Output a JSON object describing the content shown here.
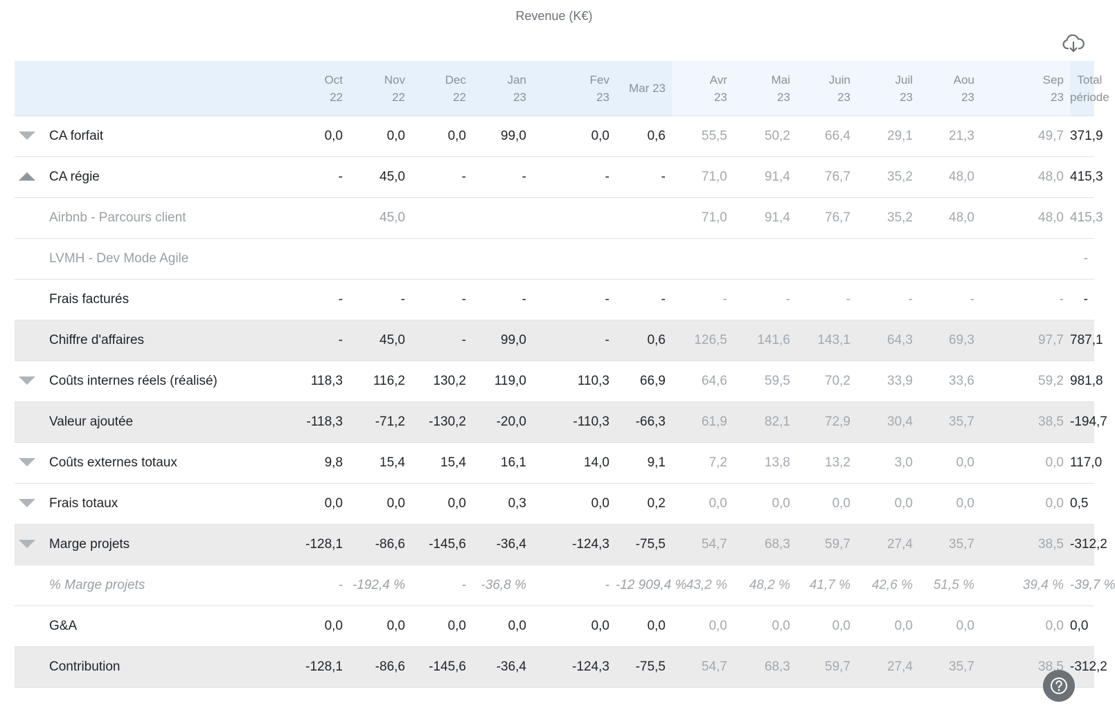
{
  "title": "Revenue (K€)",
  "columns": [
    {
      "line1": "Oct",
      "line2": "22",
      "kind": "hist"
    },
    {
      "line1": "Nov",
      "line2": "22",
      "kind": "hist"
    },
    {
      "line1": "Dec",
      "line2": "22",
      "kind": "hist"
    },
    {
      "line1": "Jan",
      "line2": "23",
      "kind": "hist"
    },
    {
      "line1": "Fev",
      "line2": "23",
      "kind": "hist"
    },
    {
      "line1": "Mar 23",
      "line2": "",
      "kind": "hist"
    },
    {
      "line1": "Avr",
      "line2": "23",
      "kind": "fcst"
    },
    {
      "line1": "Mai",
      "line2": "23",
      "kind": "fcst"
    },
    {
      "line1": "Juin",
      "line2": "23",
      "kind": "fcst"
    },
    {
      "line1": "Juil",
      "line2": "23",
      "kind": "fcst"
    },
    {
      "line1": "Aou",
      "line2": "23",
      "kind": "fcst"
    },
    {
      "line1": "Sep",
      "line2": "23",
      "kind": "fcst"
    },
    {
      "line1": "Total",
      "line2": "période",
      "kind": "tot"
    }
  ],
  "rows": [
    {
      "label": "CA forfait",
      "toggle": "down",
      "style": "normal",
      "values": [
        "0,0",
        "0,0",
        "0,0",
        "99,0",
        "0,0",
        "0,6",
        "55,5",
        "50,2",
        "66,4",
        "29,1",
        "21,3",
        "49,7",
        "371,9"
      ]
    },
    {
      "label": "CA régie",
      "toggle": "up",
      "style": "normal",
      "values": [
        "-",
        "45,0",
        "-",
        "-",
        "-",
        "-",
        "71,0",
        "91,4",
        "76,7",
        "35,2",
        "48,0",
        "48,0",
        "415,3"
      ]
    },
    {
      "label": "Airbnb - Parcours client",
      "toggle": "",
      "style": "sub",
      "values": [
        "",
        "45,0",
        "",
        "",
        "",
        "",
        "71,0",
        "91,4",
        "76,7",
        "35,2",
        "48,0",
        "48,0",
        "415,3"
      ]
    },
    {
      "label": "LVMH - Dev Mode Agile",
      "toggle": "",
      "style": "sub",
      "values": [
        "",
        "",
        "",
        "",
        "",
        "",
        "",
        "",
        "",
        "",
        "",
        "",
        "-"
      ]
    },
    {
      "label": "Frais facturés",
      "toggle": "",
      "style": "normal",
      "values": [
        "-",
        "-",
        "-",
        "-",
        "-",
        "-",
        "-",
        "-",
        "-",
        "-",
        "-",
        "-",
        "-"
      ]
    },
    {
      "label": "Chiffre d'affaires",
      "toggle": "",
      "style": "subtotal",
      "values": [
        "-",
        "45,0",
        "-",
        "99,0",
        "-",
        "0,6",
        "126,5",
        "141,6",
        "143,1",
        "64,3",
        "69,3",
        "97,7",
        "787,1"
      ]
    },
    {
      "label": "Coûts internes réels (réalisé)",
      "toggle": "down",
      "style": "normal",
      "values": [
        "118,3",
        "116,2",
        "130,2",
        "119,0",
        "110,3",
        "66,9",
        "64,6",
        "59,5",
        "70,2",
        "33,9",
        "33,6",
        "59,2",
        "981,8"
      ]
    },
    {
      "label": "Valeur ajoutée",
      "toggle": "",
      "style": "subtotal",
      "values": [
        "-118,3",
        "-71,2",
        "-130,2",
        "-20,0",
        "-110,3",
        "-66,3",
        "61,9",
        "82,1",
        "72,9",
        "30,4",
        "35,7",
        "38,5",
        "-194,7"
      ]
    },
    {
      "label": "Coûts externes totaux",
      "toggle": "down",
      "style": "normal",
      "values": [
        "9,8",
        "15,4",
        "15,4",
        "16,1",
        "14,0",
        "9,1",
        "7,2",
        "13,8",
        "13,2",
        "3,0",
        "0,0",
        "0,0",
        "117,0"
      ]
    },
    {
      "label": "Frais totaux",
      "toggle": "down",
      "style": "normal",
      "values": [
        "0,0",
        "0,0",
        "0,0",
        "0,3",
        "0,0",
        "0,2",
        "0,0",
        "0,0",
        "0,0",
        "0,0",
        "0,0",
        "0,0",
        "0,5"
      ]
    },
    {
      "label": "Marge projets",
      "toggle": "down",
      "style": "subtotal",
      "values": [
        "-128,1",
        "-86,6",
        "-145,6",
        "-36,4",
        "-124,3",
        "-75,5",
        "54,7",
        "68,3",
        "59,7",
        "27,4",
        "35,7",
        "38,5",
        "-312,2"
      ]
    },
    {
      "label": "% Marge projets",
      "toggle": "",
      "style": "pct",
      "values": [
        "-",
        "-192,4 %",
        "-",
        "-36,8 %",
        "-",
        "-12 909,4 %",
        "43,2 %",
        "48,2 %",
        "41,7 %",
        "42,6 %",
        "51,5 %",
        "39,4 %",
        "-39,7 %"
      ]
    },
    {
      "label": "G&A",
      "toggle": "",
      "style": "normal",
      "values": [
        "0,0",
        "0,0",
        "0,0",
        "0,0",
        "0,0",
        "0,0",
        "0,0",
        "0,0",
        "0,0",
        "0,0",
        "0,0",
        "0,0",
        "0,0"
      ]
    },
    {
      "label": "Contribution",
      "toggle": "",
      "style": "subtotal",
      "values": [
        "-128,1",
        "-86,6",
        "-145,6",
        "-36,4",
        "-124,3",
        "-75,5",
        "54,7",
        "68,3",
        "59,7",
        "27,4",
        "35,7",
        "38,5",
        "-312,2"
      ]
    }
  ],
  "icons": {
    "download": "cloud-download-icon",
    "help": "help-question-icon"
  },
  "colors": {
    "header_hist": "#e6f1fb",
    "header_forecast": "#f1f7fd",
    "subtotal_row": "#ebebeb",
    "forecast_text": "#a3a8ad"
  }
}
